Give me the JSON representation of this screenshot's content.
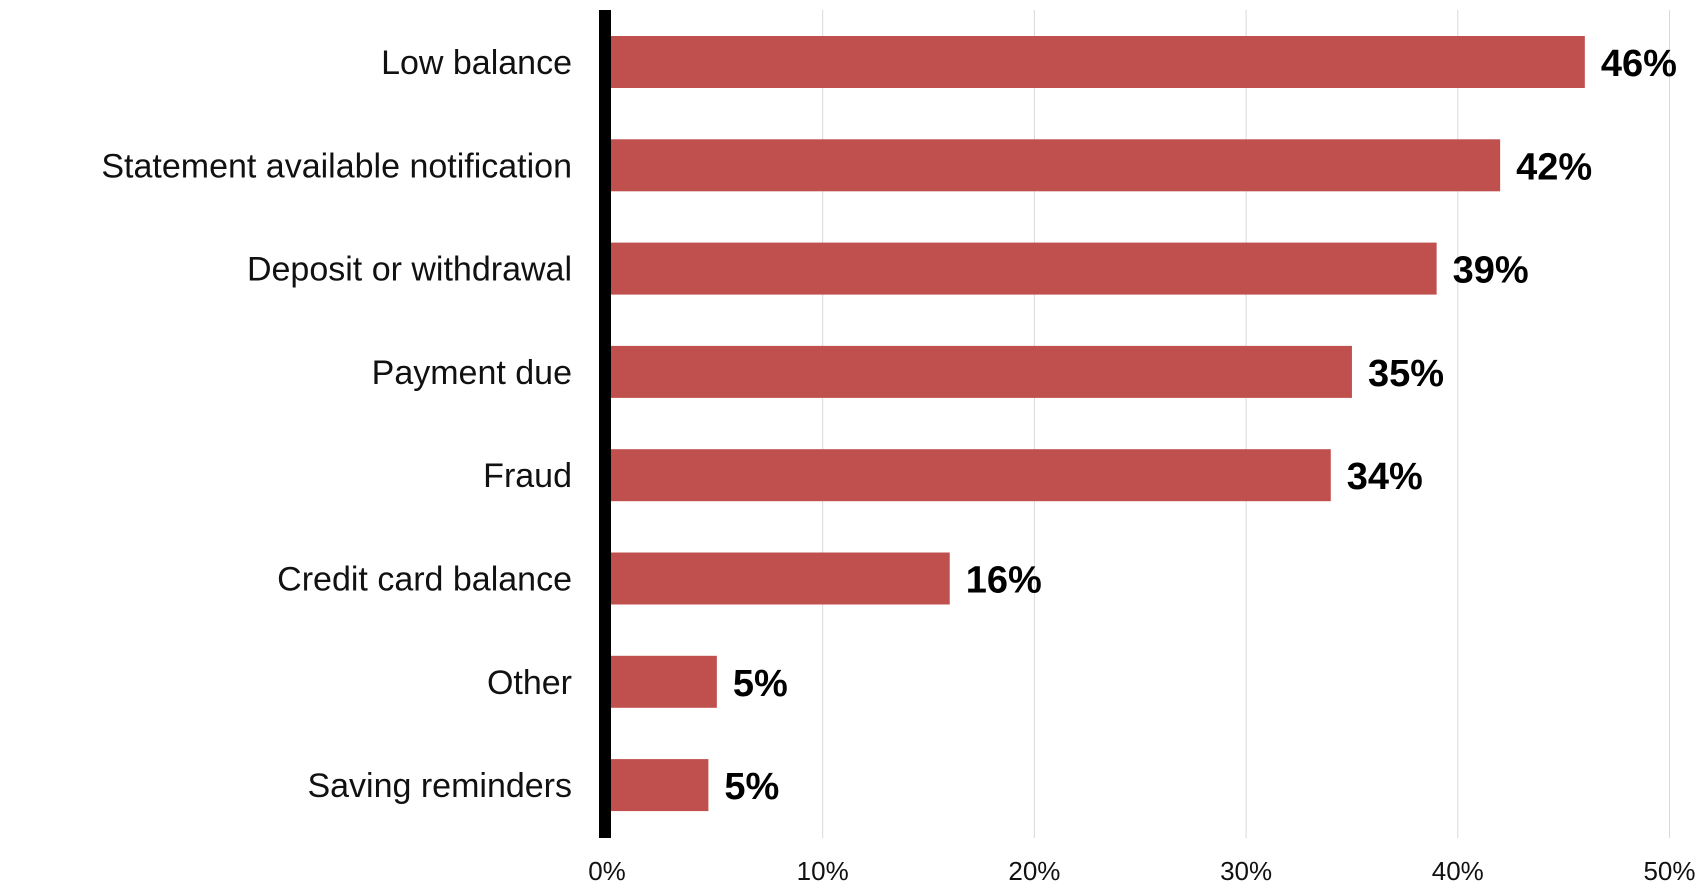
{
  "chart_data": {
    "type": "bar",
    "orientation": "horizontal",
    "categories": [
      "Low balance",
      "Statement available notification",
      "Deposit or withdrawal",
      "Payment due ",
      "Fraud",
      "Credit card balance",
      "Other",
      "Saving reminders"
    ],
    "values": [
      46,
      42,
      39,
      35,
      34,
      16,
      5,
      5
    ],
    "display_values": [
      46,
      42,
      39,
      35,
      34,
      16,
      5.0,
      4.6
    ],
    "value_labels": [
      "46%",
      "42%",
      "39%",
      "35%",
      "34%",
      "16%",
      "5%",
      "5%"
    ],
    "x_ticks": [
      0,
      10,
      20,
      30,
      40,
      50
    ],
    "x_tick_labels": [
      "0%",
      "10%",
      "20%",
      "30%",
      "40%",
      "50%"
    ],
    "xlim": [
      0,
      50
    ],
    "title": "",
    "xlabel": "",
    "ylabel": "",
    "grid": "vertical",
    "legend": "none",
    "bar_color": "#c0504d",
    "axis_color": "#000000",
    "grid_color": "#d9d9d9"
  }
}
